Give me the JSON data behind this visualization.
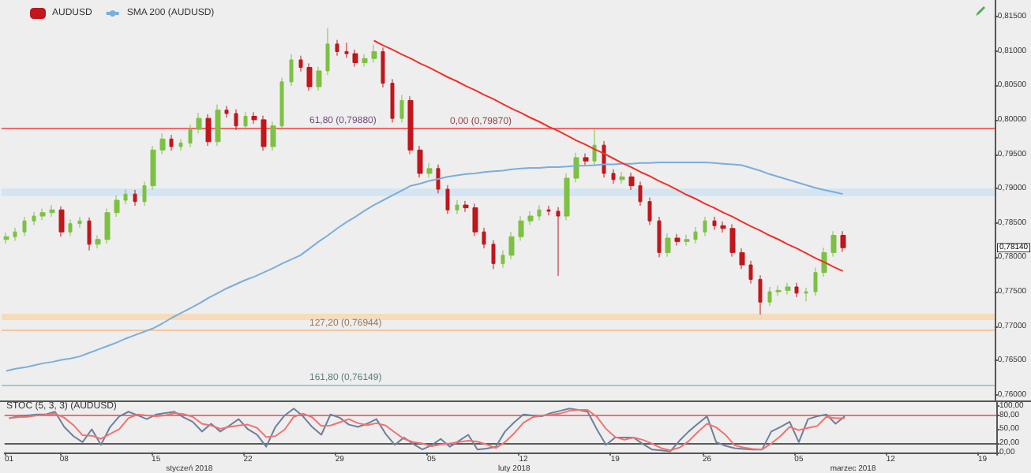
{
  "chart_data": [
    {
      "type": "candlestick",
      "legend": "top left",
      "tick_labels": "y",
      "categories": [
        "01",
        null,
        null,
        null,
        null,
        null,
        "08",
        null,
        null,
        null,
        null,
        null,
        null,
        null,
        null,
        null,
        "15",
        null,
        null,
        null,
        null,
        null,
        null,
        null,
        null,
        null,
        "22",
        null,
        null,
        null,
        null,
        null,
        null,
        null,
        null,
        null,
        "29",
        null,
        null,
        null,
        null,
        null,
        null,
        null,
        null,
        null,
        "05",
        null,
        null,
        null,
        null,
        null,
        null,
        null,
        null,
        null,
        "12",
        null,
        null,
        null,
        null,
        null,
        null,
        null,
        null,
        null,
        "19",
        null,
        null,
        null,
        null,
        null,
        null,
        null,
        null,
        null,
        "26",
        null,
        null,
        null,
        null,
        null,
        null,
        null,
        null,
        null,
        "05",
        null,
        null,
        null,
        null,
        null,
        null,
        null,
        null,
        null,
        "12",
        null,
        null,
        null,
        null,
        null,
        null,
        null,
        null,
        null,
        "19",
        null
      ],
      "ylim": [
        0.7592,
        0.8174
      ],
      "yticks": [
        {
          "value": 0.76,
          "label": "0,76000"
        },
        {
          "value": 0.765,
          "label": "0,76500"
        },
        {
          "value": 0.77,
          "label": "0,77000"
        },
        {
          "value": 0.775,
          "label": "0,77500"
        },
        {
          "value": 0.78,
          "label": "0,78000"
        },
        {
          "value": 0.785,
          "label": "0,78500"
        },
        {
          "value": 0.79,
          "label": "0,79000"
        },
        {
          "value": 0.795,
          "label": "0,79500"
        },
        {
          "value": 0.8,
          "label": "0,80000"
        },
        {
          "value": 0.805,
          "label": "0,80500"
        },
        {
          "value": 0.81,
          "label": "0,81000"
        },
        {
          "value": 0.815,
          "label": "0,81500"
        }
      ],
      "series": [
        {
          "type": "candlestick",
          "name": "AUDUSD",
          "ohlc": [
            [
              0.7826,
              0.7836,
              0.782,
              0.783
            ],
            [
              0.783,
              0.7843,
              0.7824,
              0.7837
            ],
            [
              0.7837,
              0.7859,
              0.7831,
              0.7853
            ],
            [
              0.7853,
              0.7866,
              0.7847,
              0.786
            ],
            [
              0.786,
              0.7871,
              0.7854,
              0.7865
            ],
            [
              0.7865,
              0.7876,
              0.7859,
              0.7869
            ],
            [
              0.7869,
              0.7874,
              0.783,
              0.7837
            ],
            [
              0.7837,
              0.7855,
              0.7831,
              0.7849
            ],
            [
              0.7849,
              0.7859,
              0.7843,
              0.7853
            ],
            [
              0.7853,
              0.7858,
              0.781,
              0.7819
            ],
            [
              0.7819,
              0.7832,
              0.7813,
              0.7826
            ],
            [
              0.7826,
              0.7871,
              0.782,
              0.7865
            ],
            [
              0.7865,
              0.789,
              0.7859,
              0.7883
            ],
            [
              0.7883,
              0.7899,
              0.7877,
              0.7892
            ],
            [
              0.7892,
              0.7898,
              0.7875,
              0.7881
            ],
            [
              0.7881,
              0.791,
              0.7875,
              0.7904
            ],
            [
              0.7904,
              0.7962,
              0.7898,
              0.7956
            ],
            [
              0.7956,
              0.798,
              0.795,
              0.7972
            ],
            [
              0.7972,
              0.7978,
              0.7955,
              0.7961
            ],
            [
              0.7961,
              0.7972,
              0.7955,
              0.7966
            ],
            [
              0.7966,
              0.7993,
              0.796,
              0.7986
            ],
            [
              0.7986,
              0.801,
              0.798,
              0.8002
            ],
            [
              0.8002,
              0.8008,
              0.7962,
              0.7968
            ],
            [
              0.7968,
              0.8022,
              0.7962,
              0.8014
            ],
            [
              0.8014,
              0.802,
              0.8003,
              0.8009
            ],
            [
              0.8009,
              0.8015,
              0.7985,
              0.7991
            ],
            [
              0.7991,
              0.8011,
              0.7985,
              0.8005
            ],
            [
              0.8005,
              0.8011,
              0.7994,
              0.8
            ],
            [
              0.8,
              0.8006,
              0.7955,
              0.7961
            ],
            [
              0.7961,
              0.7997,
              0.7955,
              0.7991
            ],
            [
              0.7991,
              0.8061,
              0.7985,
              0.8055
            ],
            [
              0.8055,
              0.8095,
              0.8049,
              0.8087
            ],
            [
              0.8087,
              0.8093,
              0.807,
              0.8076
            ],
            [
              0.8076,
              0.8082,
              0.8042,
              0.8048
            ],
            [
              0.8048,
              0.8077,
              0.8042,
              0.8071
            ],
            [
              0.8071,
              0.8133,
              0.8065,
              0.811
            ],
            [
              0.811,
              0.8116,
              0.8093,
              0.8099
            ],
            [
              0.8099,
              0.8112,
              0.809,
              0.8096
            ],
            [
              0.8096,
              0.8102,
              0.8077,
              0.8083
            ],
            [
              0.8083,
              0.8095,
              0.8077,
              0.8089
            ],
            [
              0.8089,
              0.8109,
              0.8083,
              0.8099
            ],
            [
              0.8099,
              0.8105,
              0.8047,
              0.8053
            ],
            [
              0.8053,
              0.8059,
              0.7996,
              0.8002
            ],
            [
              0.8002,
              0.8036,
              0.7996,
              0.8028
            ],
            [
              0.8028,
              0.8034,
              0.795,
              0.7956
            ],
            [
              0.7956,
              0.7962,
              0.7916,
              0.7922
            ],
            [
              0.7922,
              0.7937,
              0.7916,
              0.7929
            ],
            [
              0.7929,
              0.7935,
              0.7893,
              0.7899
            ],
            [
              0.7899,
              0.7905,
              0.7863,
              0.7869
            ],
            [
              0.7869,
              0.7883,
              0.7863,
              0.7876
            ],
            [
              0.7876,
              0.7882,
              0.7866,
              0.7872
            ],
            [
              0.7872,
              0.7878,
              0.7831,
              0.7837
            ],
            [
              0.7837,
              0.7843,
              0.7813,
              0.7819
            ],
            [
              0.7819,
              0.7825,
              0.7783,
              0.7791
            ],
            [
              0.7791,
              0.781,
              0.7785,
              0.7803
            ],
            [
              0.7803,
              0.7837,
              0.7797,
              0.783
            ],
            [
              0.783,
              0.786,
              0.7824,
              0.7853
            ],
            [
              0.7853,
              0.7867,
              0.7847,
              0.786
            ],
            [
              0.786,
              0.7876,
              0.7854,
              0.7869
            ],
            [
              0.7869,
              0.7875,
              0.7861,
              0.7867
            ],
            [
              0.7867,
              0.7873,
              0.7773,
              0.786
            ],
            [
              0.786,
              0.7922,
              0.7854,
              0.7915
            ],
            [
              0.7915,
              0.7952,
              0.7909,
              0.7945
            ],
            [
              0.7945,
              0.7951,
              0.7934,
              0.794
            ],
            [
              0.794,
              0.7986,
              0.7934,
              0.7963
            ],
            [
              0.7963,
              0.7969,
              0.7916,
              0.7922
            ],
            [
              0.7922,
              0.7928,
              0.7907,
              0.7913
            ],
            [
              0.7913,
              0.7924,
              0.7907,
              0.7917
            ],
            [
              0.7917,
              0.7923,
              0.7898,
              0.7904
            ],
            [
              0.7904,
              0.791,
              0.7875,
              0.7881
            ],
            [
              0.7881,
              0.7887,
              0.7847,
              0.7853
            ],
            [
              0.7853,
              0.7859,
              0.78,
              0.7807
            ],
            [
              0.7807,
              0.7835,
              0.7801,
              0.7828
            ],
            [
              0.7828,
              0.7834,
              0.7817,
              0.7823
            ],
            [
              0.7823,
              0.7833,
              0.7817,
              0.7826
            ],
            [
              0.7826,
              0.7844,
              0.782,
              0.7837
            ],
            [
              0.7837,
              0.7859,
              0.7831,
              0.7853
            ],
            [
              0.7853,
              0.7859,
              0.784,
              0.7846
            ],
            [
              0.7846,
              0.7852,
              0.7836,
              0.7842
            ],
            [
              0.7842,
              0.7848,
              0.7801,
              0.7807
            ],
            [
              0.7807,
              0.7813,
              0.7783,
              0.7789
            ],
            [
              0.7789,
              0.7795,
              0.7762,
              0.7768
            ],
            [
              0.7768,
              0.7774,
              0.7717,
              0.7735
            ],
            [
              0.7735,
              0.7757,
              0.7729,
              0.775
            ],
            [
              0.775,
              0.7759,
              0.7744,
              0.7752
            ],
            [
              0.7752,
              0.7763,
              0.7746,
              0.7757
            ],
            [
              0.7757,
              0.7763,
              0.7742,
              0.7748
            ],
            [
              0.7748,
              0.7756,
              0.7736,
              0.775
            ],
            [
              0.775,
              0.7785,
              0.7744,
              0.7778
            ],
            [
              0.7778,
              0.7814,
              0.7772,
              0.7807
            ],
            [
              0.7807,
              0.7838,
              0.7801,
              0.7832
            ],
            [
              0.7832,
              0.7838,
              0.7808,
              0.7814
            ],
            null,
            null,
            null,
            null,
            null,
            null,
            null,
            null,
            null,
            null,
            null,
            null,
            null,
            null,
            null,
            null
          ],
          "colors": [
            "#7dc142",
            "#7dc142",
            "#7dc142",
            "#7dc142",
            "#7dc142",
            "#7dc142",
            "#c0161c",
            "#7dc142",
            "#7dc142",
            "#c0161c",
            "#7dc142",
            "#7dc142",
            "#7dc142",
            "#7dc142",
            "#c0161c",
            "#7dc142",
            "#7dc142",
            "#7dc142",
            "#c0161c",
            "#7dc142",
            "#7dc142",
            "#7dc142",
            "#c0161c",
            "#7dc142",
            "#c0161c",
            "#c0161c",
            "#7dc142",
            "#c0161c",
            "#c0161c",
            "#7dc142",
            "#7dc142",
            "#7dc142",
            "#c0161c",
            "#c0161c",
            "#7dc142",
            "#7dc142",
            "#c0161c",
            "#c0161c",
            "#c0161c",
            "#7dc142",
            "#7dc142",
            "#c0161c",
            "#c0161c",
            "#7dc142",
            "#c0161c",
            "#c0161c",
            "#7dc142",
            "#c0161c",
            "#c0161c",
            "#7dc142",
            "#c0161c",
            "#c0161c",
            "#c0161c",
            "#c0161c",
            "#7dc142",
            "#7dc142",
            "#7dc142",
            "#7dc142",
            "#7dc142",
            "#c0161c",
            "#c0161c",
            "#7dc142",
            "#7dc142",
            "#c0161c",
            "#7dc142",
            "#c0161c",
            "#c0161c",
            "#7dc142",
            "#c0161c",
            "#c0161c",
            "#c0161c",
            "#c0161c",
            "#7dc142",
            "#c0161c",
            "#7dc142",
            "#7dc142",
            "#7dc142",
            "#c0161c",
            "#c0161c",
            "#c0161c",
            "#c0161c",
            "#c0161c",
            "#c0161c",
            "#7dc142",
            "#7dc142",
            "#7dc142",
            "#c0161c",
            "#7dc142",
            "#7dc142",
            "#7dc142",
            "#7dc142",
            "#c0161c",
            null,
            null,
            null,
            null,
            null,
            null,
            null,
            null,
            null,
            null,
            null,
            null,
            null,
            null,
            null,
            null
          ]
        },
        {
          "type": "line",
          "name": "SMA 200 (AUDUSD)",
          "color": "#7aaedc",
          "values": [
            0.7635,
            0.7638,
            0.764,
            0.7643,
            0.7646,
            0.7648,
            0.7651,
            0.7653,
            0.7656,
            0.7661,
            0.7666,
            0.7671,
            0.7676,
            0.7682,
            0.7687,
            0.7692,
            0.7697,
            0.7704,
            0.7712,
            0.7719,
            0.7726,
            0.7733,
            0.7741,
            0.7748,
            0.7755,
            0.7761,
            0.7767,
            0.7772,
            0.7778,
            0.7784,
            0.7791,
            0.7797,
            0.7803,
            0.7813,
            0.7823,
            0.7832,
            0.7842,
            0.7851,
            0.7859,
            0.7868,
            0.7876,
            0.7883,
            0.789,
            0.7897,
            0.7904,
            0.7907,
            0.7911,
            0.7914,
            0.7917,
            0.7919,
            0.7921,
            0.7922,
            0.7924,
            0.7925,
            0.7926,
            0.7928,
            0.7929,
            0.793,
            0.793,
            0.7931,
            0.7931,
            0.7932,
            0.7933,
            0.7933,
            0.7934,
            0.7935,
            0.7935,
            0.7936,
            0.7936,
            0.7937,
            0.7937,
            0.7938,
            0.7938,
            0.7938,
            0.7938,
            0.7938,
            0.7938,
            0.7937,
            0.7936,
            0.7935,
            0.7934,
            0.793,
            0.7926,
            0.7921,
            0.7917,
            0.7913,
            0.7909,
            0.7905,
            0.7901,
            0.7898,
            0.7895,
            0.7892,
            null,
            null,
            null,
            null,
            null,
            null,
            null,
            null,
            null,
            null,
            null,
            null,
            null,
            null,
            null,
            null
          ]
        },
        {
          "type": "line",
          "color": "#f0302a",
          "values": [
            null,
            null,
            null,
            null,
            null,
            null,
            null,
            null,
            null,
            null,
            null,
            null,
            null,
            null,
            null,
            null,
            null,
            null,
            null,
            null,
            null,
            null,
            null,
            null,
            null,
            null,
            null,
            null,
            null,
            null,
            null,
            null,
            null,
            null,
            null,
            null,
            null,
            null,
            null,
            null,
            0.8115,
            0.8108,
            0.8102,
            0.8095,
            0.8089,
            0.8082,
            0.8076,
            0.8069,
            0.8062,
            0.8056,
            0.8049,
            0.8043,
            0.8036,
            0.803,
            0.8023,
            0.8016,
            0.801,
            0.8003,
            0.7997,
            0.799,
            0.7984,
            0.7977,
            0.797,
            0.7964,
            0.7957,
            0.7951,
            0.7944,
            0.7937,
            0.7931,
            0.7924,
            0.7918,
            0.7911,
            0.7905,
            0.7898,
            0.7891,
            0.7885,
            0.7878,
            0.7872,
            0.7865,
            0.7859,
            0.7852,
            0.7845,
            0.7839,
            0.7832,
            0.7826,
            0.7819,
            0.7813,
            0.7806,
            0.7799,
            0.7793,
            0.7786,
            0.778,
            null,
            null,
            null,
            null,
            null,
            null,
            null,
            null,
            null,
            null,
            null,
            null,
            null,
            null,
            null,
            null
          ]
        }
      ],
      "ref_lines": [
        {
          "axis": "y",
          "value": 0.7988,
          "label": "61,80 (0,79880)",
          "color": "#b57fc9"
        },
        {
          "axis": "y",
          "value": 0.7987,
          "label": "0,00 (0,79870)",
          "color": "#f06a6a"
        },
        {
          "axis": "y",
          "value": 0.76944,
          "label": "127,20 (0,76944)",
          "color": "#f2c6a4"
        },
        {
          "axis": "y",
          "value": 0.76149,
          "label": "161,80 (0,76149)",
          "color": "#98cdcd"
        }
      ],
      "bands": [
        {
          "axis": "y",
          "from": 0.7889,
          "to": 0.79,
          "color": "#d3e4f3"
        },
        {
          "axis": "y",
          "from": 0.7709,
          "to": 0.7718,
          "color": "#f6dcbc"
        }
      ],
      "annotations": [
        "0,78140"
      ]
    },
    {
      "type": "line",
      "title": "STOC (5, 3, 3) (AUDUSD)",
      "categories": [
        "01",
        null,
        null,
        null,
        null,
        null,
        "08",
        null,
        null,
        null,
        null,
        null,
        null,
        null,
        null,
        null,
        "15",
        null,
        null,
        null,
        null,
        null,
        null,
        null,
        null,
        null,
        "22",
        null,
        null,
        null,
        null,
        null,
        null,
        null,
        null,
        null,
        "29",
        null,
        null,
        null,
        null,
        null,
        null,
        null,
        null,
        null,
        "05",
        null,
        null,
        null,
        null,
        null,
        null,
        null,
        null,
        null,
        "12",
        null,
        null,
        null,
        null,
        null,
        null,
        null,
        null,
        null,
        "19",
        null,
        null,
        null,
        null,
        null,
        null,
        null,
        null,
        null,
        "26",
        null,
        null,
        null,
        null,
        null,
        null,
        null,
        null,
        null,
        "05",
        null,
        null,
        null,
        null,
        null,
        null,
        null,
        null,
        null,
        "12",
        null,
        null,
        null,
        null,
        null,
        null,
        null,
        null,
        null,
        "19",
        null
      ],
      "ylim": [
        -4,
        109
      ],
      "yticks": [
        {
          "value": 0,
          "label": "0,00"
        },
        {
          "value": 20,
          "label": "20,00"
        },
        {
          "value": 50,
          "label": "50,00"
        },
        {
          "value": 80,
          "label": "80,00"
        },
        {
          "value": 100,
          "label": "100,00"
        }
      ],
      "series": [
        {
          "color": "#6e7f9c",
          "values": [
            74,
            78,
            80,
            82,
            82,
            88,
            55,
            35,
            22,
            50,
            16,
            55,
            78,
            88,
            80,
            72,
            82,
            85,
            88,
            76,
            66,
            45,
            62,
            45,
            58,
            72,
            50,
            38,
            12,
            55,
            80,
            95,
            78,
            55,
            38,
            82,
            75,
            60,
            55,
            62,
            72,
            40,
            16,
            32,
            18,
            6,
            15,
            29,
            12,
            25,
            38,
            6,
            8,
            12,
            45,
            65,
            82,
            80,
            78,
            85,
            90,
            95,
            92,
            88,
            50,
            16,
            32,
            32,
            32,
            18,
            6,
            4,
            2,
            25,
            45,
            62,
            78,
            22,
            14,
            9,
            7,
            6,
            6,
            45,
            55,
            66,
            22,
            72,
            78,
            82,
            62,
            78,
            null,
            null,
            null,
            null,
            null,
            null,
            null,
            null,
            null,
            null,
            null,
            null,
            null,
            null,
            null,
            null
          ]
        },
        {
          "color": "#f07272",
          "values": [
            74,
            76,
            77,
            80,
            81,
            84,
            75,
            59,
            37,
            36,
            29,
            40,
            50,
            74,
            82,
            80,
            78,
            80,
            85,
            83,
            77,
            62,
            58,
            51,
            55,
            58,
            60,
            53,
            33,
            35,
            49,
            77,
            84,
            76,
            57,
            58,
            65,
            72,
            63,
            59,
            63,
            58,
            43,
            29,
            22,
            19,
            13,
            17,
            19,
            22,
            25,
            23,
            17,
            9,
            22,
            41,
            64,
            76,
            80,
            81,
            84,
            90,
            92,
            92,
            77,
            51,
            33,
            27,
            32,
            27,
            19,
            9,
            4,
            10,
            24,
            44,
            62,
            54,
            38,
            15,
            10,
            7,
            6,
            19,
            35,
            55,
            48,
            53,
            57,
            77,
            74,
            74,
            null,
            null,
            null,
            null,
            null,
            null,
            null,
            null,
            null,
            null,
            null,
            null,
            null,
            null,
            null,
            null
          ]
        }
      ],
      "ref_lines": [
        {
          "axis": "y",
          "value": 80,
          "color": "#ff6a6a"
        },
        {
          "axis": "y",
          "value": 20,
          "color": "#5a5a5a"
        }
      ],
      "annotations": [
        "styczeń 2018",
        "luty 2018",
        "marzec 2018"
      ]
    }
  ]
}
